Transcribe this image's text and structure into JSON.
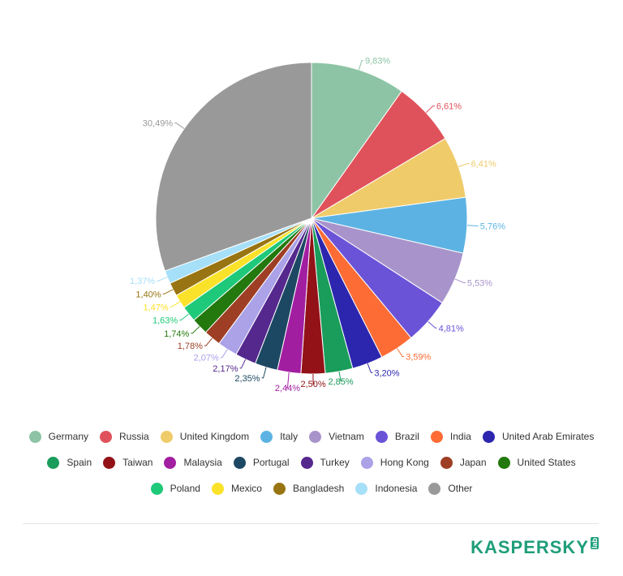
{
  "chart_data": {
    "type": "pie",
    "title": "",
    "slices": [
      {
        "label": "Germany",
        "value": 9.83,
        "display": "9,83%",
        "color": "#8dc4a5"
      },
      {
        "label": "Russia",
        "value": 6.61,
        "display": "6,61%",
        "color": "#e0525b"
      },
      {
        "label": "United Kingdom",
        "value": 6.41,
        "display": "6,41%",
        "color": "#efcb6a"
      },
      {
        "label": "Italy",
        "value": 5.76,
        "display": "5,76%",
        "color": "#5cb3e3"
      },
      {
        "label": "Vietnam",
        "value": 5.53,
        "display": "5,53%",
        "color": "#a894cb"
      },
      {
        "label": "Brazil",
        "value": 4.81,
        "display": "4,81%",
        "color": "#6b53d8"
      },
      {
        "label": "India",
        "value": 3.59,
        "display": "3,59%",
        "color": "#fe6c35"
      },
      {
        "label": "United Arab Emirates",
        "value": 3.2,
        "display": "3,20%",
        "color": "#2c26ae"
      },
      {
        "label": "Spain",
        "value": 2.85,
        "display": "2,85%",
        "color": "#1a9c5b"
      },
      {
        "label": "Taiwan",
        "value": 2.5,
        "display": "2,50%",
        "color": "#921217"
      },
      {
        "label": "Malaysia",
        "value": 2.44,
        "display": "2,44%",
        "color": "#a21ea1"
      },
      {
        "label": "Portugal",
        "value": 2.35,
        "display": "2,35%",
        "color": "#1d4863"
      },
      {
        "label": "Turkey",
        "value": 2.17,
        "display": "2,17%",
        "color": "#55288e"
      },
      {
        "label": "Hong Kong",
        "value": 2.07,
        "display": "2,07%",
        "color": "#aba2e8"
      },
      {
        "label": "Japan",
        "value": 1.78,
        "display": "1,78%",
        "color": "#9e3e24"
      },
      {
        "label": "United States",
        "value": 1.74,
        "display": "1,74%",
        "color": "#23780e"
      },
      {
        "label": "Poland",
        "value": 1.63,
        "display": "1,63%",
        "color": "#1fc97a"
      },
      {
        "label": "Mexico",
        "value": 1.47,
        "display": "1,47%",
        "color": "#fbe22a"
      },
      {
        "label": "Bangladesh",
        "value": 1.4,
        "display": "1,40%",
        "color": "#987412"
      },
      {
        "label": "Indonesia",
        "value": 1.37,
        "display": "1,37%",
        "color": "#a6dff8"
      },
      {
        "label": "Other",
        "value": 30.49,
        "display": "30,49%",
        "color": "#999999"
      }
    ],
    "legend_position": "bottom",
    "legend_rows": [
      [
        "Germany",
        "Russia",
        "United Kingdom",
        "Italy",
        "Vietnam",
        "Brazil",
        "India",
        "United Arab Emirates"
      ],
      [
        "Spain",
        "Taiwan",
        "Malaysia",
        "Portugal",
        "Turkey",
        "Hong Kong",
        "Japan",
        "United States"
      ],
      [
        "Poland",
        "Mexico",
        "Bangladesh",
        "Indonesia",
        "Other"
      ]
    ]
  },
  "brand": {
    "name": "KASPERSKY",
    "sub": "lab"
  }
}
